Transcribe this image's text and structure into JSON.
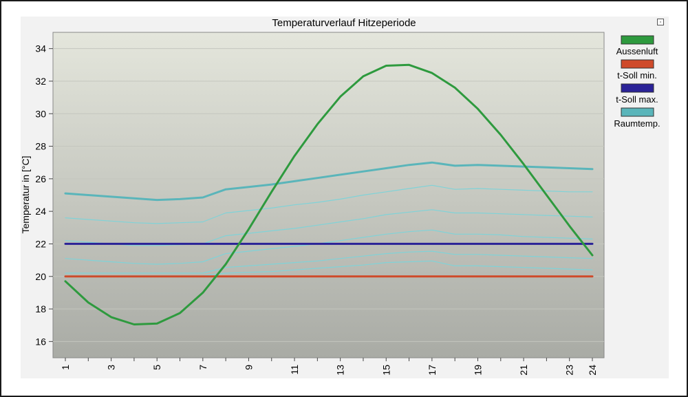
{
  "chart_data": {
    "type": "line",
    "title": "Temperaturverlauf Hitzeperiode",
    "xlabel": "",
    "ylabel": "Temperatur in [°C]",
    "ylim": [
      15,
      35
    ],
    "yticks": [
      16,
      18,
      20,
      22,
      24,
      26,
      28,
      30,
      32,
      34
    ],
    "xticks": [
      1,
      3,
      5,
      7,
      9,
      11,
      13,
      15,
      17,
      19,
      21,
      23,
      24
    ],
    "x": [
      1,
      2,
      3,
      4,
      5,
      6,
      7,
      8,
      9,
      10,
      11,
      12,
      13,
      14,
      15,
      16,
      17,
      18,
      19,
      20,
      21,
      22,
      23,
      24
    ],
    "legend_position": "right",
    "grid": "horizontal",
    "series": [
      {
        "name": "Aussenluft",
        "color": "#2e9a3e",
        "values": [
          19.7,
          18.4,
          17.5,
          17.05,
          17.1,
          17.75,
          19.0,
          20.75,
          22.9,
          25.2,
          27.4,
          29.35,
          31.05,
          32.3,
          32.95,
          33.0,
          32.5,
          31.6,
          30.3,
          28.7,
          26.9,
          25.0,
          23.1,
          21.3
        ]
      },
      {
        "name": "t-Soll min.",
        "color": "#cf4a2a",
        "values": [
          20,
          20,
          20,
          20,
          20,
          20,
          20,
          20,
          20,
          20,
          20,
          20,
          20,
          20,
          20,
          20,
          20,
          20,
          20,
          20,
          20,
          20,
          20,
          20
        ]
      },
      {
        "name": "t-Soll max.",
        "color": "#2a2297",
        "values": [
          22,
          22,
          22,
          22,
          22,
          22,
          22,
          22,
          22,
          22,
          22,
          22,
          22,
          22,
          22,
          22,
          22,
          22,
          22,
          22,
          22,
          22,
          22,
          22
        ]
      },
      {
        "name": "Raumtemp.",
        "color": "#5ab5ba",
        "values": [
          25.1,
          25.0,
          24.9,
          24.8,
          24.7,
          24.75,
          24.85,
          25.35,
          25.5,
          25.65,
          25.85,
          26.05,
          26.25,
          26.45,
          26.65,
          26.85,
          27.0,
          26.8,
          26.85,
          26.8,
          26.75,
          26.7,
          26.65,
          26.6
        ]
      }
    ],
    "secondary_lines": {
      "color": "#7fd3d8",
      "values": [
        [
          23.6,
          23.5,
          23.4,
          23.3,
          23.25,
          23.3,
          23.35,
          23.9,
          24.05,
          24.2,
          24.4,
          24.55,
          24.75,
          25.0,
          25.2,
          25.4,
          25.6,
          25.35,
          25.4,
          25.35,
          25.3,
          25.25,
          25.2,
          25.2
        ],
        [
          22.2,
          22.1,
          22.0,
          21.9,
          21.9,
          21.95,
          22.0,
          22.5,
          22.65,
          22.8,
          22.95,
          23.15,
          23.35,
          23.55,
          23.8,
          23.95,
          24.1,
          23.9,
          23.9,
          23.85,
          23.8,
          23.75,
          23.7,
          23.65
        ],
        [
          21.1,
          21.0,
          20.9,
          20.8,
          20.75,
          20.8,
          20.9,
          21.4,
          21.55,
          21.7,
          21.85,
          22.0,
          22.2,
          22.4,
          22.6,
          22.75,
          22.85,
          22.6,
          22.6,
          22.55,
          22.45,
          22.4,
          22.35,
          22.3
        ],
        [
          20.2,
          20.2,
          20.2,
          20.2,
          20.2,
          20.2,
          20.2,
          20.55,
          20.65,
          20.75,
          20.85,
          20.95,
          21.1,
          21.25,
          21.4,
          21.5,
          21.55,
          21.35,
          21.35,
          21.3,
          21.25,
          21.2,
          21.15,
          21.1
        ],
        [
          20.05,
          20.05,
          20.05,
          20.05,
          20.05,
          20.05,
          20.05,
          20.2,
          20.25,
          20.3,
          20.4,
          20.5,
          20.6,
          20.7,
          20.85,
          20.9,
          20.95,
          20.65,
          20.65,
          20.6,
          20.55,
          20.5,
          20.45,
          20.4
        ]
      ]
    }
  },
  "window": {
    "corner_button_glyph": "▫"
  }
}
